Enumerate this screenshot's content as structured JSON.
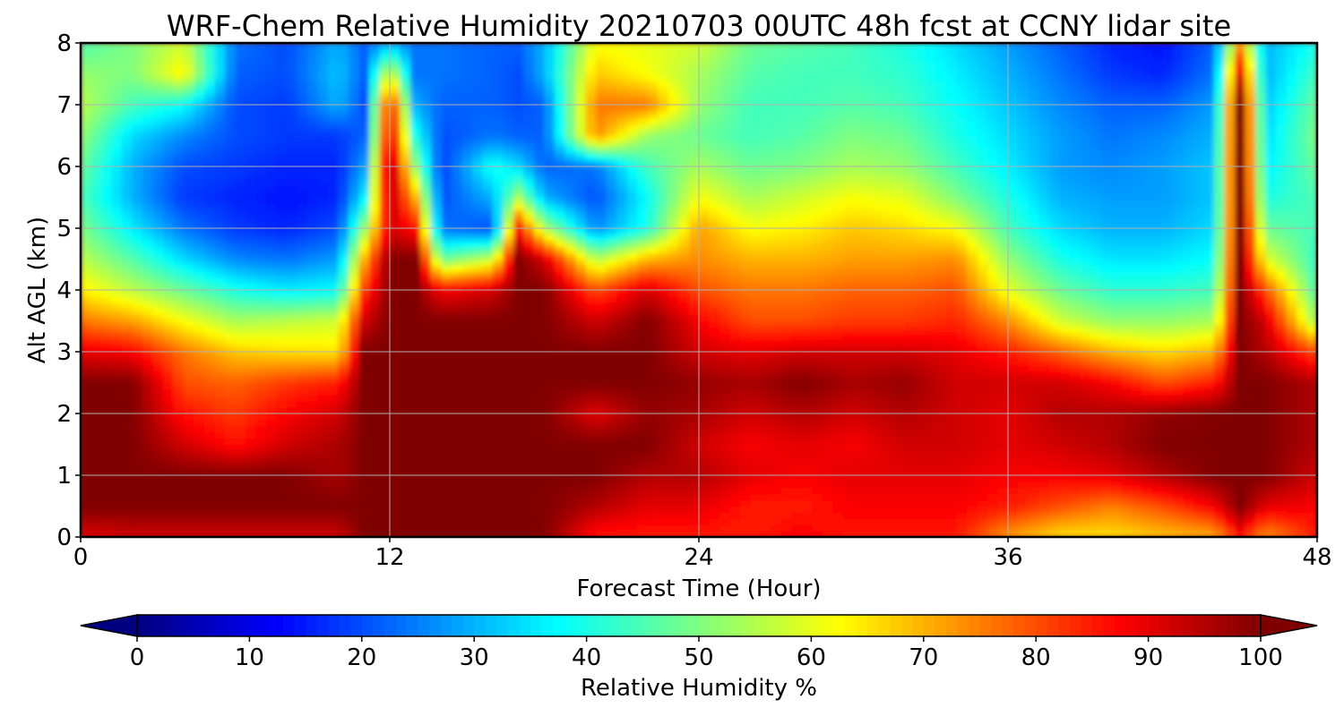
{
  "chart_data": {
    "type": "heatmap",
    "subtype": "filled-contour",
    "title": "WRF-Chem Relative Humidity 20210703 00UTC 48h fcst at CCNY lidar site",
    "xlabel": "Forecast Time (Hour)",
    "ylabel": "Alt AGL (km)",
    "xlim": [
      0,
      48
    ],
    "ylim": [
      0,
      8
    ],
    "xticks": [
      0,
      12,
      24,
      36,
      48
    ],
    "yticks": [
      0,
      1,
      2,
      3,
      4,
      5,
      6,
      7,
      8
    ],
    "grid": true,
    "colormap": "jet",
    "colorbar": {
      "label": "Relative Humidity %",
      "orientation": "horizontal",
      "extend": "both",
      "min": 0,
      "max": 100,
      "ticks": [
        0,
        10,
        20,
        30,
        40,
        50,
        60,
        70,
        80,
        90,
        100
      ]
    },
    "x": [
      0,
      2,
      4,
      6,
      8,
      10,
      11,
      12,
      13,
      14,
      16,
      17,
      18,
      20,
      22,
      24,
      26,
      28,
      30,
      32,
      34,
      36,
      38,
      40,
      42,
      44,
      45,
      46,
      48
    ],
    "y": [
      0,
      0.5,
      1,
      1.5,
      2,
      2.5,
      3,
      3.5,
      4,
      4.5,
      5,
      5.5,
      6,
      6.5,
      7,
      7.5,
      8
    ],
    "z": [
      [
        90,
        92,
        92,
        92,
        92,
        92,
        100,
        100,
        100,
        100,
        100,
        100,
        100,
        85,
        85,
        85,
        85,
        88,
        85,
        85,
        85,
        72,
        65,
        65,
        68,
        70,
        85,
        72,
        85
      ],
      [
        100,
        100,
        100,
        100,
        100,
        100,
        100,
        100,
        100,
        100,
        100,
        100,
        100,
        95,
        90,
        90,
        85,
        85,
        88,
        88,
        88,
        85,
        80,
        75,
        80,
        88,
        100,
        90,
        88
      ],
      [
        100,
        100,
        100,
        100,
        100,
        96,
        100,
        100,
        100,
        100,
        100,
        100,
        100,
        100,
        95,
        95,
        90,
        88,
        90,
        90,
        90,
        88,
        88,
        90,
        95,
        100,
        100,
        100,
        92
      ],
      [
        100,
        100,
        92,
        86,
        92,
        96,
        100,
        100,
        100,
        100,
        100,
        100,
        100,
        100,
        100,
        92,
        88,
        90,
        88,
        92,
        92,
        90,
        92,
        95,
        100,
        100,
        100,
        100,
        95
      ],
      [
        100,
        100,
        86,
        82,
        88,
        92,
        100,
        100,
        100,
        100,
        100,
        100,
        100,
        90,
        98,
        96,
        92,
        95,
        92,
        95,
        92,
        90,
        95,
        95,
        98,
        100,
        100,
        100,
        95
      ],
      [
        100,
        100,
        80,
        78,
        82,
        85,
        100,
        100,
        100,
        100,
        100,
        100,
        100,
        100,
        100,
        98,
        96,
        100,
        96,
        98,
        92,
        92,
        92,
        88,
        80,
        85,
        100,
        100,
        95
      ],
      [
        90,
        88,
        76,
        68,
        66,
        65,
        100,
        100,
        100,
        100,
        100,
        100,
        100,
        100,
        100,
        92,
        90,
        92,
        92,
        92,
        90,
        85,
        78,
        70,
        66,
        70,
        100,
        95,
        80
      ],
      [
        76,
        72,
        62,
        54,
        56,
        58,
        92,
        100,
        100,
        100,
        100,
        100,
        100,
        92,
        100,
        88,
        80,
        80,
        82,
        82,
        84,
        74,
        58,
        52,
        52,
        54,
        100,
        92,
        52
      ],
      [
        64,
        56,
        48,
        40,
        36,
        38,
        82,
        100,
        100,
        88,
        92,
        100,
        100,
        80,
        92,
        80,
        76,
        76,
        78,
        78,
        80,
        60,
        48,
        42,
        42,
        44,
        100,
        80,
        44
      ],
      [
        56,
        46,
        34,
        26,
        24,
        28,
        70,
        100,
        100,
        48,
        58,
        100,
        92,
        55,
        70,
        74,
        70,
        70,
        72,
        72,
        74,
        52,
        40,
        35,
        35,
        38,
        100,
        60,
        42
      ],
      [
        50,
        36,
        24,
        18,
        16,
        20,
        52,
        92,
        86,
        24,
        20,
        86,
        55,
        26,
        40,
        72,
        62,
        64,
        68,
        66,
        62,
        44,
        34,
        30,
        30,
        34,
        100,
        48,
        44
      ],
      [
        45,
        30,
        18,
        16,
        14,
        16,
        36,
        96,
        70,
        20,
        30,
        54,
        30,
        20,
        38,
        62,
        54,
        58,
        62,
        60,
        50,
        40,
        30,
        28,
        28,
        32,
        100,
        40,
        45
      ],
      [
        48,
        30,
        20,
        18,
        16,
        16,
        28,
        100,
        52,
        18,
        40,
        34,
        22,
        24,
        44,
        54,
        48,
        50,
        54,
        52,
        44,
        36,
        28,
        26,
        28,
        32,
        100,
        36,
        48
      ],
      [
        52,
        34,
        26,
        20,
        18,
        18,
        22,
        92,
        40,
        20,
        24,
        22,
        22,
        74,
        52,
        48,
        44,
        46,
        50,
        48,
        40,
        34,
        28,
        24,
        26,
        30,
        100,
        34,
        50
      ],
      [
        56,
        44,
        38,
        20,
        18,
        30,
        20,
        88,
        30,
        22,
        22,
        20,
        22,
        76,
        76,
        52,
        44,
        44,
        46,
        44,
        38,
        32,
        26,
        22,
        22,
        28,
        100,
        32,
        48
      ],
      [
        52,
        50,
        64,
        22,
        20,
        32,
        22,
        62,
        24,
        24,
        22,
        20,
        30,
        68,
        62,
        54,
        46,
        44,
        44,
        42,
        36,
        30,
        24,
        18,
        16,
        24,
        90,
        30,
        44
      ],
      [
        45,
        50,
        58,
        24,
        20,
        30,
        22,
        30,
        24,
        24,
        22,
        22,
        30,
        62,
        60,
        58,
        48,
        46,
        44,
        40,
        34,
        28,
        22,
        16,
        14,
        22,
        70,
        30,
        40
      ]
    ]
  }
}
